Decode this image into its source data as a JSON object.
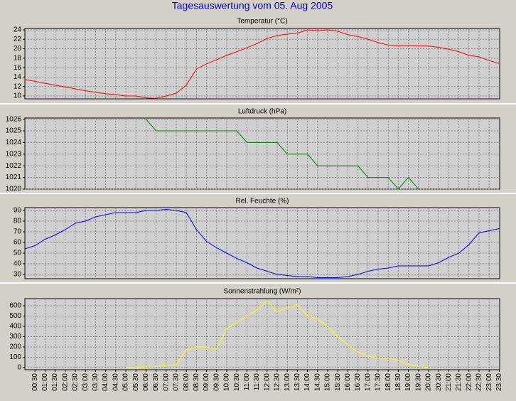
{
  "title": "Tagesauswertung vom 05. Aug 2005",
  "chart_data": [
    {
      "type": "line",
      "title": "Temperatur (°C)",
      "color": "#ff0000",
      "ylim": [
        9.4,
        24.3
      ],
      "yticks": [
        10,
        12,
        14,
        16,
        18,
        20,
        22,
        24
      ],
      "grid": true,
      "values": [
        13.5,
        13.1,
        12.7,
        12.3,
        11.9,
        11.5,
        11.1,
        10.8,
        10.5,
        10.3,
        10.0,
        10.0,
        9.6,
        9.5,
        10.0,
        10.6,
        12.3,
        15.7,
        16.8,
        17.7,
        18.6,
        19.4,
        20.2,
        21.1,
        22.2,
        22.8,
        23.1,
        23.3,
        24.0,
        23.8,
        24.0,
        23.7,
        23.0,
        22.6,
        22.0,
        21.3,
        20.8,
        20.6,
        20.7,
        20.6,
        20.6,
        20.3,
        19.9,
        19.4,
        18.6,
        18.3,
        17.5,
        16.9
      ]
    },
    {
      "type": "line",
      "title": "Luftdruck (hPa)",
      "color": "#008000",
      "ylim": [
        1020,
        1026.1
      ],
      "yticks": [
        1020,
        1021,
        1022,
        1023,
        1024,
        1025,
        1026
      ],
      "grid": true,
      "values": [
        null,
        null,
        null,
        null,
        null,
        null,
        null,
        null,
        null,
        null,
        null,
        null,
        1026,
        1025,
        1025,
        1025,
        1025,
        1025,
        1025,
        1025,
        1025,
        1025,
        1024,
        1024,
        1024,
        1024,
        1023,
        1023,
        1023,
        1022,
        1022,
        1022,
        1022,
        1022,
        1021,
        1021,
        1021,
        1020,
        1021,
        1020,
        null,
        null,
        null,
        null,
        null,
        null,
        null,
        null
      ]
    },
    {
      "type": "line",
      "title": "Rel. Feuchte (%)",
      "color": "#0000ff",
      "ylim": [
        26,
        92.7
      ],
      "yticks": [
        30,
        40,
        50,
        60,
        70,
        80,
        90
      ],
      "grid": true,
      "values": [
        54,
        57,
        63,
        67,
        72,
        78,
        80,
        84,
        86,
        88,
        88,
        88,
        90,
        90,
        91,
        90,
        88,
        72,
        61,
        55,
        50,
        45,
        41,
        36,
        33,
        30,
        29,
        28,
        28,
        27,
        27,
        27,
        28,
        30,
        33,
        35,
        36,
        38,
        38,
        38,
        38,
        41,
        46,
        50,
        58,
        69,
        71,
        73
      ]
    },
    {
      "type": "line",
      "title": "Sonnenstrahlung (W/m²)",
      "color": "#ffff00",
      "ylim": [
        -21,
        669
      ],
      "yticks": [
        0,
        100,
        200,
        300,
        400,
        500,
        600
      ],
      "grid": true,
      "categories": [
        null,
        "00:30",
        "01:00",
        "01:30",
        "02:00",
        "02:30",
        "03:00",
        "03:30",
        "04:00",
        "04:30",
        "05:00",
        "05:30",
        "06:00",
        "06:30",
        "07:00",
        "07:30",
        "08:00",
        "08:30",
        "09:00",
        "09:30",
        "10:00",
        "10:30",
        "11:00",
        "11:30",
        "12:00",
        "12:30",
        "13:00",
        "13:30",
        "14:00",
        "14:30",
        "15:00",
        "15:30",
        "16:00",
        "16:30",
        "17:00",
        "17:30",
        "18:00",
        "18:30",
        "19:00",
        "19:30",
        "20:00",
        "20:30",
        "21:00",
        "21:30",
        "22:00",
        "22:30",
        "23:00",
        "23:30"
      ],
      "values": [
        null,
        null,
        null,
        null,
        null,
        null,
        null,
        null,
        null,
        null,
        0,
        0,
        5,
        10,
        20,
        30,
        170,
        200,
        200,
        180,
        380,
        440,
        500,
        560,
        650,
        540,
        580,
        610,
        500,
        470,
        400,
        300,
        220,
        150,
        110,
        90,
        90,
        70,
        30,
        10,
        0,
        null,
        null,
        null,
        null,
        null,
        null,
        null
      ]
    }
  ]
}
